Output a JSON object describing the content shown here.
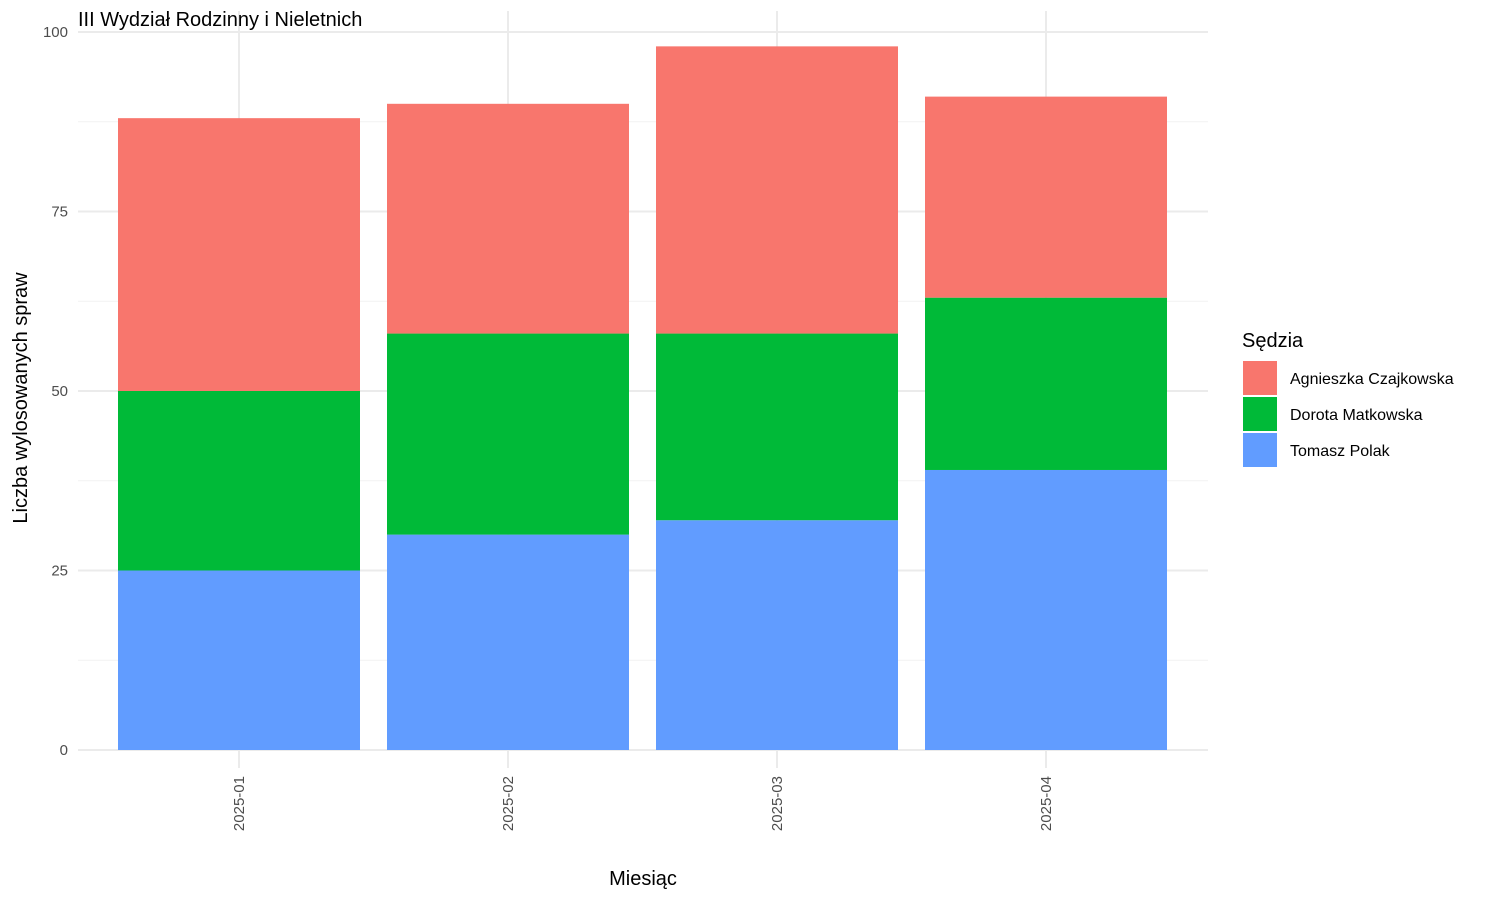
{
  "chart_data": {
    "type": "bar",
    "stacked": true,
    "title": "III Wydział Rodzinny i Nieletnich",
    "xlabel": "Miesiąc",
    "ylabel": "Liczba wylosowanych spraw",
    "categories": [
      "2025-01",
      "2025-02",
      "2025-03",
      "2025-04"
    ],
    "ylim": [
      0,
      100
    ],
    "yticks": [
      0,
      25,
      50,
      75,
      100
    ],
    "grid": true,
    "legend": {
      "title": "Sędzia",
      "position": "right"
    },
    "series": [
      {
        "name": "Tomasz Polak",
        "color": "#619CFF",
        "values": [
          25,
          30,
          32,
          39
        ]
      },
      {
        "name": "Dorota Matkowska",
        "color": "#00BA38",
        "values": [
          25,
          28,
          26,
          24
        ]
      },
      {
        "name": "Agnieszka Czajkowska",
        "color": "#F8766D",
        "values": [
          38,
          32,
          40,
          28
        ]
      }
    ]
  }
}
